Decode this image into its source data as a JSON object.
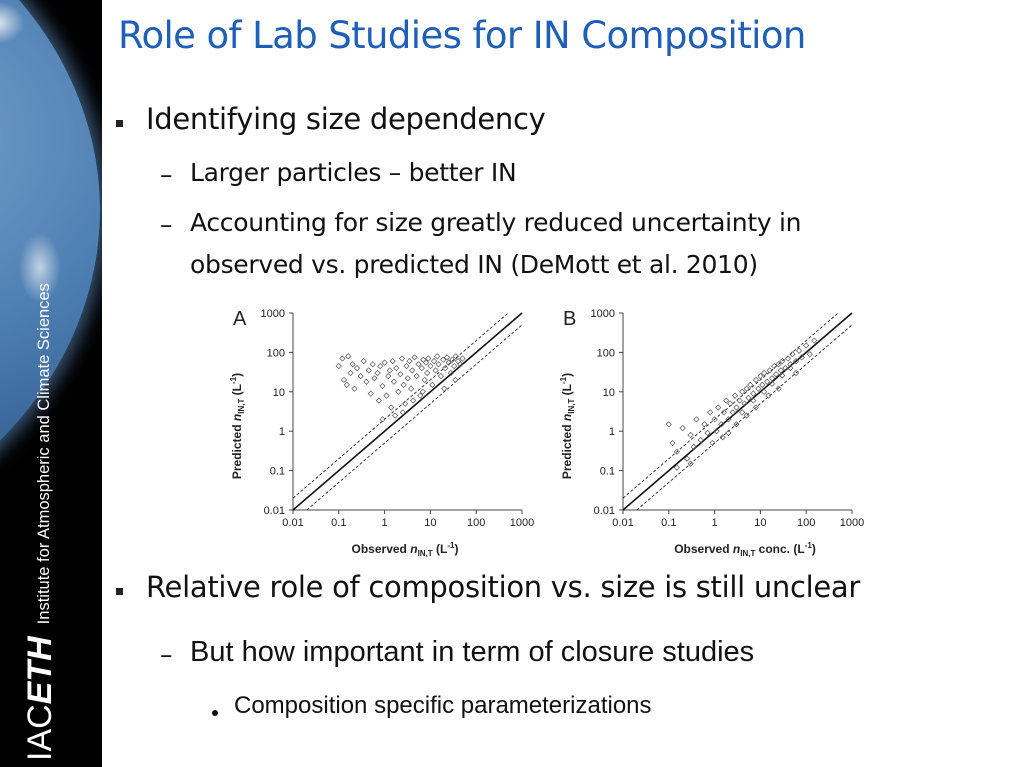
{
  "slide": {
    "title": "Role of Lab Studies for IN Composition",
    "bullets": [
      {
        "text": "Identifying size dependency",
        "sub": [
          {
            "text": "Larger particles – better IN"
          },
          {
            "text": "Accounting for size greatly reduced uncertainty in",
            "text2": "observed vs. predicted IN (DeMott et al. 2010)"
          }
        ]
      },
      {
        "text": "Relative role of composition vs. size is still unclear",
        "sub": [
          {
            "text": "But how important in term of closure studies",
            "sub": [
              {
                "text": "Composition specific parameterizations"
              }
            ]
          }
        ]
      }
    ],
    "dash": "–"
  },
  "branding": {
    "logo_iac": "IAC",
    "logo_eth": "ETH",
    "institute": "Institute for Atmospheric and Climate Sciences"
  },
  "figure": {
    "panels": [
      {
        "label": "A",
        "xlabel_pre": "Observed ",
        "xlabel_var": "n",
        "xlabel_sub": "IN,T",
        "xlabel_post": " (L",
        "xlabel_sup": "-1",
        "xlabel_end": ")",
        "ylabel_pre": "Predicted ",
        "ylabel_var": "n",
        "ylabel_sub": "IN,T",
        "ylabel_post": " (L",
        "ylabel_sup": "-1",
        "ylabel_end": ")"
      },
      {
        "label": "B",
        "xlabel_pre": "Observed ",
        "xlabel_var": "n",
        "xlabel_sub": "IN,T",
        "xlabel_post": " conc. (L",
        "xlabel_sup": "-1",
        "xlabel_end": ")",
        "ylabel_pre": "Predicted ",
        "ylabel_var": "n",
        "ylabel_sub": "IN,T",
        "ylabel_post": " (L",
        "ylabel_sup": "-1",
        "ylabel_end": ")"
      }
    ],
    "ticks": [
      "0.01",
      "0.1",
      "1",
      "10",
      "100",
      "1000"
    ]
  },
  "chart_data": [
    {
      "type": "scatter",
      "title": "A",
      "xlabel": "Observed n_IN,T (L-1)",
      "ylabel": "Predicted n_IN,T (L-1)",
      "xscale": "log",
      "yscale": "log",
      "xlim": [
        0.01,
        1000
      ],
      "ylim": [
        0.01,
        1000
      ],
      "tick_labels": [
        "0.01",
        "0.1",
        "1",
        "10",
        "100",
        "1000"
      ],
      "reference_lines": [
        "1:1 solid",
        "factor-of-2 dashed"
      ],
      "points": [
        [
          0.1,
          45
        ],
        [
          0.12,
          70
        ],
        [
          0.13,
          20
        ],
        [
          0.15,
          15
        ],
        [
          0.16,
          80
        ],
        [
          0.18,
          30
        ],
        [
          0.2,
          50
        ],
        [
          0.22,
          12
        ],
        [
          0.25,
          40
        ],
        [
          0.3,
          25
        ],
        [
          0.35,
          60
        ],
        [
          0.4,
          18
        ],
        [
          0.45,
          35
        ],
        [
          0.5,
          9
        ],
        [
          0.55,
          50
        ],
        [
          0.6,
          22
        ],
        [
          0.7,
          30
        ],
        [
          0.75,
          6
        ],
        [
          0.8,
          45
        ],
        [
          0.9,
          14
        ],
        [
          1.0,
          55
        ],
        [
          1.1,
          8
        ],
        [
          1.2,
          25
        ],
        [
          1.3,
          35
        ],
        [
          1.4,
          4
        ],
        [
          1.5,
          60
        ],
        [
          1.6,
          18
        ],
        [
          1.8,
          40
        ],
        [
          2.0,
          10
        ],
        [
          2.2,
          28
        ],
        [
          2.4,
          70
        ],
        [
          2.6,
          15
        ],
        [
          2.8,
          5
        ],
        [
          3.0,
          45
        ],
        [
          3.2,
          22
        ],
        [
          3.5,
          60
        ],
        [
          3.8,
          12
        ],
        [
          4.0,
          35
        ],
        [
          4.5,
          75
        ],
        [
          5.0,
          25
        ],
        [
          5.5,
          50
        ],
        [
          6.0,
          8
        ],
        [
          6.5,
          40
        ],
        [
          7.0,
          65
        ],
        [
          7.5,
          20
        ],
        [
          8.0,
          55
        ],
        [
          8.5,
          30
        ],
        [
          9.0,
          70
        ],
        [
          10,
          45
        ],
        [
          11,
          15
        ],
        [
          12,
          60
        ],
        [
          13,
          35
        ],
        [
          14,
          80
        ],
        [
          15,
          50
        ],
        [
          17,
          25
        ],
        [
          19,
          65
        ],
        [
          21,
          40
        ],
        [
          23,
          75
        ],
        [
          25,
          55
        ],
        [
          28,
          30
        ],
        [
          30,
          65
        ],
        [
          33,
          45
        ],
        [
          36,
          80
        ],
        [
          40,
          60
        ],
        [
          45,
          50
        ],
        [
          50,
          70
        ],
        [
          2.5,
          3
        ],
        [
          1.7,
          2.5
        ],
        [
          0.9,
          2
        ],
        [
          4.2,
          6
        ],
        [
          6.8,
          10
        ],
        [
          20,
          12
        ],
        [
          35,
          20
        ]
      ]
    },
    {
      "type": "scatter",
      "title": "B",
      "xlabel": "Observed n_IN,T conc. (L-1)",
      "ylabel": "Predicted n_IN,T (L-1)",
      "xscale": "log",
      "yscale": "log",
      "xlim": [
        0.01,
        1000
      ],
      "ylim": [
        0.01,
        1000
      ],
      "tick_labels": [
        "0.01",
        "0.1",
        "1",
        "10",
        "100",
        "1000"
      ],
      "reference_lines": [
        "1:1 solid",
        "factor-of-2 dashed"
      ],
      "points": [
        [
          0.1,
          1.5
        ],
        [
          0.12,
          0.5
        ],
        [
          0.15,
          0.3
        ],
        [
          0.2,
          1.2
        ],
        [
          0.25,
          0.2
        ],
        [
          0.3,
          0.8
        ],
        [
          0.35,
          0.4
        ],
        [
          0.4,
          2
        ],
        [
          0.5,
          0.6
        ],
        [
          0.6,
          1.5
        ],
        [
          0.7,
          0.9
        ],
        [
          0.8,
          3
        ],
        [
          0.9,
          0.5
        ],
        [
          1.0,
          2
        ],
        [
          1.1,
          1
        ],
        [
          1.2,
          4
        ],
        [
          1.4,
          1.5
        ],
        [
          1.6,
          3
        ],
        [
          1.8,
          6
        ],
        [
          2.0,
          2
        ],
        [
          2.2,
          5
        ],
        [
          2.5,
          3
        ],
        [
          2.8,
          8
        ],
        [
          3.0,
          4
        ],
        [
          3.5,
          6
        ],
        [
          4.0,
          10
        ],
        [
          4.5,
          5
        ],
        [
          5.0,
          12
        ],
        [
          5.5,
          7
        ],
        [
          6.0,
          15
        ],
        [
          7.0,
          9
        ],
        [
          8.0,
          20
        ],
        [
          9.0,
          12
        ],
        [
          10,
          25
        ],
        [
          11,
          15
        ],
        [
          12,
          30
        ],
        [
          14,
          18
        ],
        [
          16,
          35
        ],
        [
          18,
          22
        ],
        [
          20,
          45
        ],
        [
          22,
          28
        ],
        [
          25,
          50
        ],
        [
          28,
          35
        ],
        [
          30,
          60
        ],
        [
          35,
          40
        ],
        [
          40,
          70
        ],
        [
          45,
          50
        ],
        [
          50,
          90
        ],
        [
          60,
          60
        ],
        [
          70,
          110
        ],
        [
          80,
          75
        ],
        [
          100,
          150
        ],
        [
          120,
          90
        ],
        [
          150,
          200
        ],
        [
          15,
          8
        ],
        [
          8,
          4
        ],
        [
          5,
          2.5
        ],
        [
          3,
          1.5
        ],
        [
          2,
          0.9
        ],
        [
          0.15,
          0.12
        ],
        [
          0.3,
          0.15
        ],
        [
          1.5,
          0.7
        ],
        [
          25,
          12
        ],
        [
          60,
          30
        ],
        [
          4,
          3
        ],
        [
          7,
          6
        ],
        [
          12,
          10
        ],
        [
          18,
          16
        ],
        [
          30,
          26
        ],
        [
          45,
          40
        ]
      ]
    }
  ]
}
